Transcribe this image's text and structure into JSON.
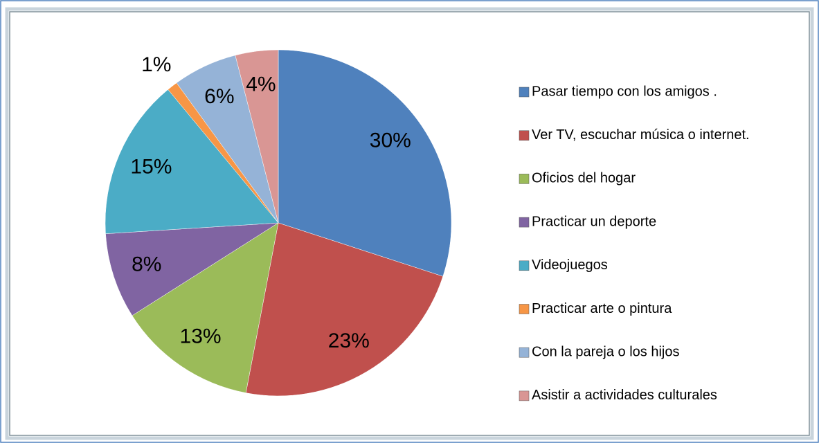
{
  "chart_data": {
    "type": "pie",
    "categories": [
      "Pasar tiempo con los amigos .",
      "Ver TV, escuchar música o internet.",
      "Oficios del hogar",
      "Practicar un deporte",
      "Videojuegos",
      "Practicar arte o pintura",
      "Con la pareja o los hijos",
      "Asistir a actividades culturales"
    ],
    "values": [
      30,
      23,
      13,
      8,
      15,
      1,
      6,
      4
    ],
    "value_labels": [
      "30%",
      "23%",
      "13%",
      "8%",
      "15%",
      "1%",
      "6%",
      "4%"
    ],
    "colors": [
      "#4f81bd",
      "#c0504d",
      "#9bbb59",
      "#8064a2",
      "#4bacc6",
      "#f79646",
      "#95b3d7",
      "#d99694"
    ],
    "legend": "right"
  }
}
